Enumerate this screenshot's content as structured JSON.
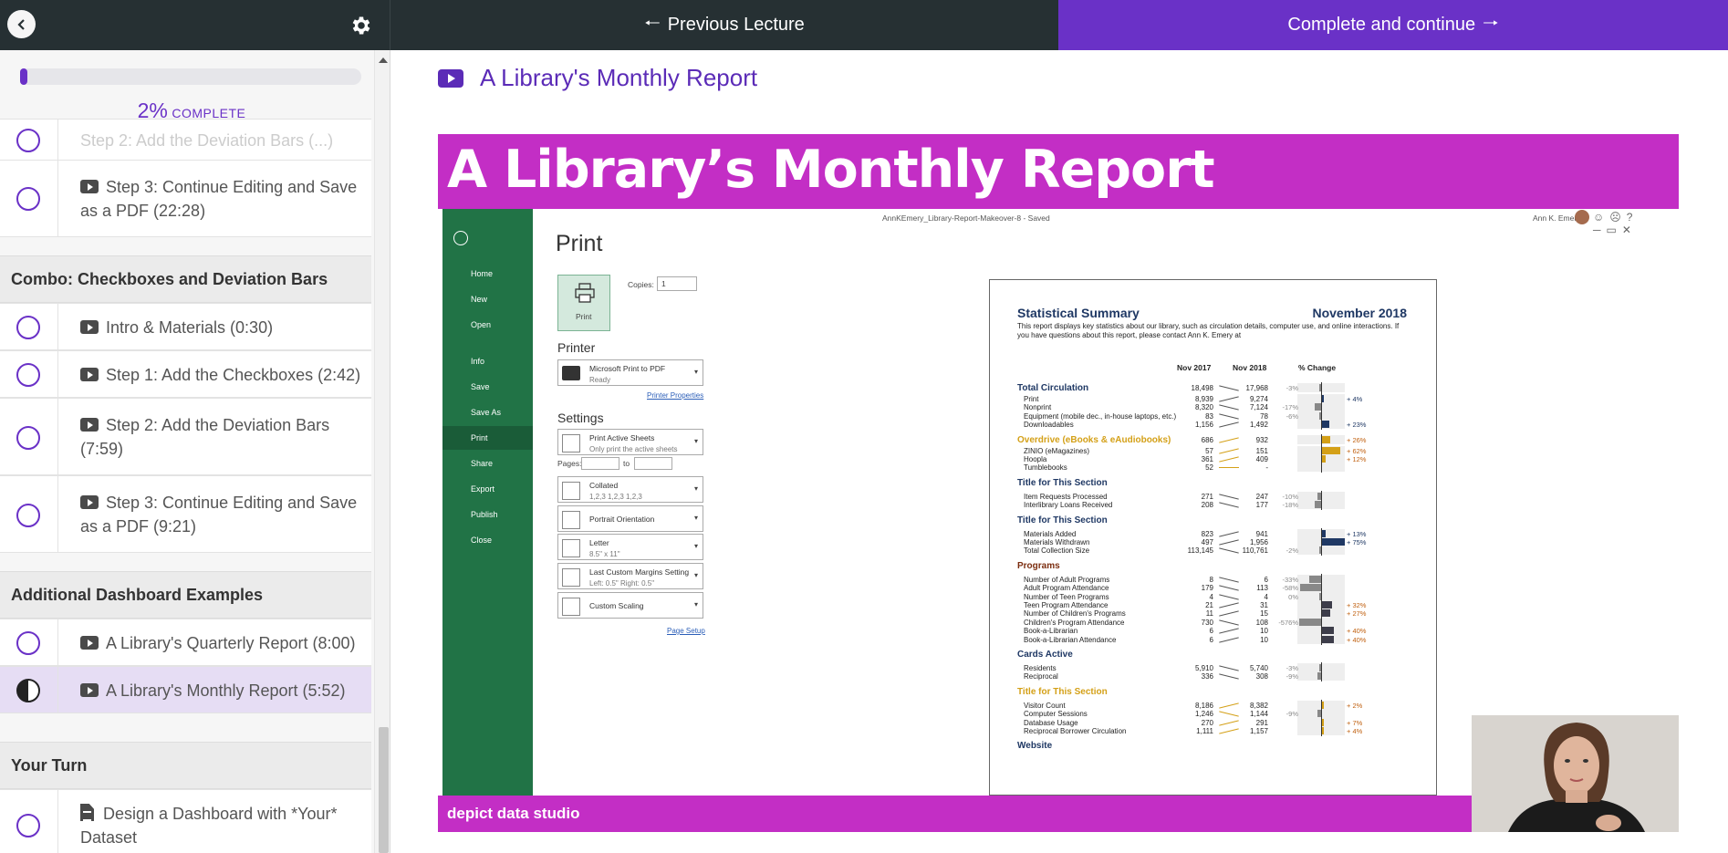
{
  "topbar": {
    "prev_label": "Previous Lecture",
    "next_label": "Complete and continue"
  },
  "progress": {
    "percent_text": "2%",
    "percent_value": 0.02,
    "complete_word": "COMPLETE"
  },
  "curriculum": {
    "partial_item": "Step 2: Add the Deviation Bars (...)",
    "items_a": [
      {
        "label": "Step 3: Continue Editing and Save as a PDF (22:28)",
        "type": "video"
      }
    ],
    "section_combo": "Combo: Checkboxes and Deviation Bars",
    "items_b": [
      {
        "label": "Intro & Materials (0:30)",
        "type": "video"
      },
      {
        "label": "Step 1: Add the Checkboxes (2:42)",
        "type": "video"
      },
      {
        "label": "Step 2: Add the Deviation Bars (7:59)",
        "type": "video"
      },
      {
        "label": "Step 3: Continue Editing and Save as a PDF (9:21)",
        "type": "video"
      }
    ],
    "section_additional": "Additional Dashboard Examples",
    "items_c": [
      {
        "label": "A Library's Quarterly Report (8:00)",
        "type": "video"
      },
      {
        "label": "A Library's Monthly Report (5:52)",
        "type": "video",
        "active": true
      }
    ],
    "section_turn": "Your Turn",
    "items_d": [
      {
        "label": "Design a Dashboard with *Your* Dataset",
        "type": "document"
      }
    ]
  },
  "lecture": {
    "title": "A Library's Monthly Report"
  },
  "video": {
    "banner_title": "A Library’s Monthly Report",
    "footer_brand": "depict data studio",
    "colors": {
      "banner": "#c32ec5",
      "excel_green": "#217346",
      "accent": "#6a31c7"
    }
  },
  "excel": {
    "file_title": "AnnKEmery_Library-Report-Makeover-8  -  Saved",
    "user": "Ann K. Emery",
    "nav": [
      "Home",
      "New",
      "Open",
      "Info",
      "Save",
      "Save As",
      "Print",
      "Share",
      "Export",
      "Publish",
      "Close"
    ],
    "nav_selected": "Print",
    "print_heading": "Print",
    "print_button": "Print",
    "copies_label": "Copies:",
    "copies_value": "1",
    "printer_heading": "Printer",
    "printer_name": "Microsoft Print to PDF",
    "printer_status": "Ready",
    "printer_props": "Printer Properties",
    "settings_heading": "Settings",
    "settings": [
      {
        "main": "Print Active Sheets",
        "sub": "Only print the active sheets"
      },
      {
        "main": "Collated",
        "sub": "1,2,3    1,2,3    1,2,3"
      },
      {
        "main": "Portrait Orientation",
        "sub": ""
      },
      {
        "main": "Letter",
        "sub": "8.5\" x 11\""
      },
      {
        "main": "Last Custom Margins Setting",
        "sub": "Left: 0.5\"   Right: 0.5\""
      },
      {
        "main": "Custom Scaling",
        "sub": ""
      }
    ],
    "pages_label": "Pages:",
    "pages_to": "to",
    "page_setup": "Page Setup"
  },
  "report": {
    "title": "Statistical Summary",
    "month": "November 2018",
    "intro": "This report displays key statistics about our library, such as circulation details, computer use, and online interactions. If you have questions about this report, please contact Ann K. Emery at",
    "col_a": "Nov 2017",
    "col_b": "Nov 2018",
    "col_c": "% Change",
    "sections": [
      {
        "name": "Total Circulation",
        "color": "#1f3864",
        "rows": [
          {
            "label": "Total Circulation",
            "a": "18,498",
            "b": "17,968",
            "neg": "-3%",
            "pos": "",
            "bold": true
          },
          {
            "label": "Print",
            "a": "8,939",
            "b": "9,274",
            "neg": "",
            "pos": "+ 4%"
          },
          {
            "label": "Nonprint",
            "a": "8,320",
            "b": "7,124",
            "neg": "-17%",
            "pos": ""
          },
          {
            "label": "Equipment (mobile dec., in-house laptops, etc.)",
            "a": "83",
            "b": "78",
            "neg": "-6%",
            "pos": ""
          },
          {
            "label": "Downloadables",
            "a": "1,156",
            "b": "1,492",
            "neg": "",
            "pos": "+ 23%"
          }
        ]
      },
      {
        "name": "Overdrive (eBooks & eAudiobooks)",
        "color": "#d4a017",
        "rows": [
          {
            "label": "Overdrive (eBooks & eAudiobooks)",
            "a": "686",
            "b": "932",
            "neg": "",
            "pos": "+ 26%",
            "bold": true
          },
          {
            "label": "ZINIO (eMagazines)",
            "a": "57",
            "b": "151",
            "neg": "",
            "pos": "+ 62%"
          },
          {
            "label": "Hoopla",
            "a": "361",
            "b": "409",
            "neg": "",
            "pos": "+ 12%"
          },
          {
            "label": "Tumblebooks",
            "a": "52",
            "b": "-",
            "neg": "",
            "pos": ""
          }
        ]
      },
      {
        "name": "Title for This Section",
        "color": "#1f3864",
        "rows": [
          {
            "label": "Item Requests Processed",
            "a": "271",
            "b": "247",
            "neg": "-10%",
            "pos": ""
          },
          {
            "label": "Interlibrary Loans Received",
            "a": "208",
            "b": "177",
            "neg": "-18%",
            "pos": ""
          }
        ]
      },
      {
        "name": "Title for This Section",
        "color": "#1f3864",
        "rows": [
          {
            "label": "Materials Added",
            "a": "823",
            "b": "941",
            "neg": "",
            "pos": "+ 13%"
          },
          {
            "label": "Materials Withdrawn",
            "a": "497",
            "b": "1,956",
            "neg": "",
            "pos": "+ 75%"
          },
          {
            "label": "Total Collection Size",
            "a": "113,145",
            "b": "110,761",
            "neg": "-2%",
            "pos": ""
          }
        ]
      },
      {
        "name": "Programs",
        "color": "#7b2d0f",
        "rows": [
          {
            "label": "Number of Adult Programs",
            "a": "8",
            "b": "6",
            "neg": "-33%",
            "pos": ""
          },
          {
            "label": "Adult Program Attendance",
            "a": "179",
            "b": "113",
            "neg": "-58%",
            "pos": ""
          },
          {
            "label": "Number of Teen Programs",
            "a": "4",
            "b": "4",
            "neg": "0%",
            "pos": ""
          },
          {
            "label": "Teen Program Attendance",
            "a": "21",
            "b": "31",
            "neg": "",
            "pos": "+ 32%"
          },
          {
            "label": "Number of Children's Programs",
            "a": "11",
            "b": "15",
            "neg": "",
            "pos": "+ 27%"
          },
          {
            "label": "Children's Program Attendance",
            "a": "730",
            "b": "108",
            "neg": "-576%",
            "pos": ""
          },
          {
            "label": "Book-a-Librarian",
            "a": "6",
            "b": "10",
            "neg": "",
            "pos": "+ 40%"
          },
          {
            "label": "Book-a-Librarian Attendance",
            "a": "6",
            "b": "10",
            "neg": "",
            "pos": "+ 40%"
          }
        ]
      },
      {
        "name": "Cards Active",
        "color": "#1f3864",
        "rows": [
          {
            "label": "Residents",
            "a": "5,910",
            "b": "5,740",
            "neg": "-3%",
            "pos": ""
          },
          {
            "label": "Reciprocal",
            "a": "336",
            "b": "308",
            "neg": "-9%",
            "pos": ""
          }
        ]
      },
      {
        "name": "Title for This Section",
        "color": "#d4a017",
        "rows": [
          {
            "label": "Visitor Count",
            "a": "8,186",
            "b": "8,382",
            "neg": "",
            "pos": "+ 2%"
          },
          {
            "label": "Computer Sessions",
            "a": "1,246",
            "b": "1,144",
            "neg": "-9%",
            "pos": ""
          },
          {
            "label": "Database Usage",
            "a": "270",
            "b": "291",
            "neg": "",
            "pos": "+ 7%"
          },
          {
            "label": "Reciprocal Borrower Circulation",
            "a": "1,111",
            "b": "1,157",
            "neg": "",
            "pos": "+ 4%"
          }
        ]
      },
      {
        "name": "Website",
        "color": "#1f3864",
        "rows": []
      }
    ]
  }
}
